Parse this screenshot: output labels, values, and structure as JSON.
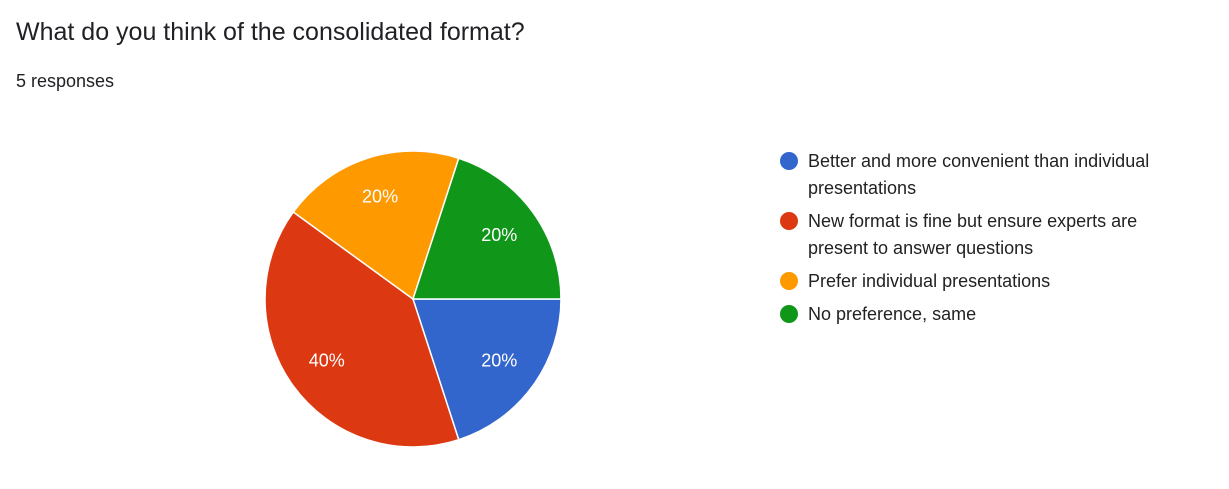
{
  "chart_data": {
    "type": "pie",
    "title": "What do you think of the consolidated format?",
    "subtitle": "5 responses",
    "categories": [
      "Better and more convenient than individual presentations",
      "New format is fine but ensure experts are present to answer questions",
      "Prefer individual presentations",
      "No preference, same"
    ],
    "values": [
      20,
      40,
      20,
      20
    ],
    "value_labels": [
      "20%",
      "40%",
      "20%",
      "20%"
    ],
    "colors": [
      "#3366cc",
      "#dc3912",
      "#ff9900",
      "#109618"
    ]
  }
}
